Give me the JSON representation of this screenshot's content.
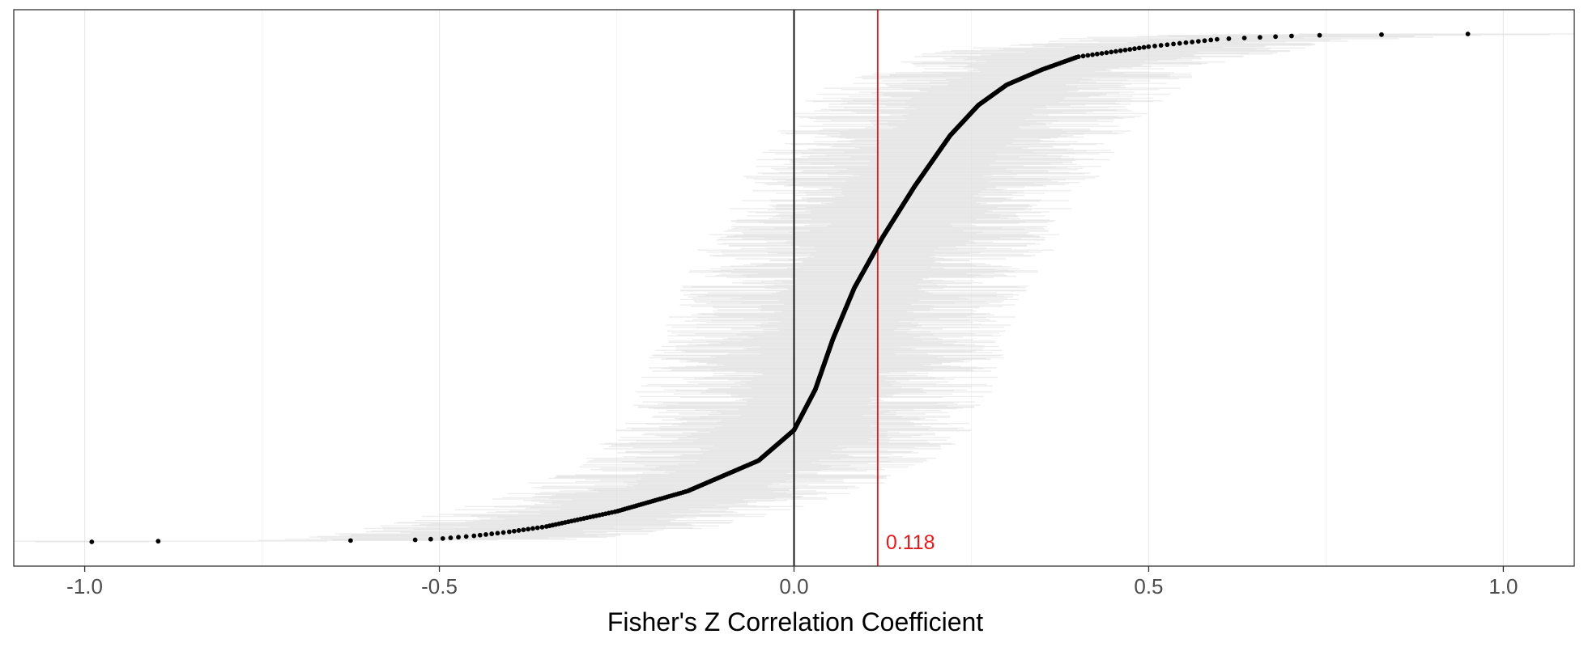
{
  "chart_data": {
    "type": "scatter",
    "subtype": "caterpillar-forest-plot",
    "title": "",
    "xlabel": "Fisher's Z Correlation Coefficient",
    "ylabel": "",
    "xlim": [
      -1.1,
      1.1
    ],
    "xticks": [
      -1.0,
      -0.5,
      0.0,
      0.5,
      1.0
    ],
    "xtick_labels": [
      "-1.0",
      "-0.5",
      "0.0",
      "0.5",
      "1.0"
    ],
    "grid": true,
    "legend": "none",
    "n_points_approx": 760,
    "sorted_estimates_quantiles": [
      [
        0.0,
        -0.99
      ],
      [
        0.0013,
        -0.9
      ],
      [
        0.003,
        -0.55
      ],
      [
        0.006,
        -0.5
      ],
      [
        0.012,
        -0.45
      ],
      [
        0.02,
        -0.4
      ],
      [
        0.03,
        -0.35
      ],
      [
        0.045,
        -0.3
      ],
      [
        0.06,
        -0.25
      ],
      [
        0.08,
        -0.2
      ],
      [
        0.1,
        -0.15
      ],
      [
        0.13,
        -0.1
      ],
      [
        0.16,
        -0.05
      ],
      [
        0.22,
        0.0
      ],
      [
        0.3,
        0.03
      ],
      [
        0.4,
        0.055
      ],
      [
        0.5,
        0.085
      ],
      [
        0.6,
        0.125
      ],
      [
        0.7,
        0.17
      ],
      [
        0.8,
        0.22
      ],
      [
        0.86,
        0.26
      ],
      [
        0.9,
        0.3
      ],
      [
        0.93,
        0.35
      ],
      [
        0.955,
        0.4
      ],
      [
        0.975,
        0.5
      ],
      [
        0.99,
        0.6
      ],
      [
        0.996,
        0.7
      ],
      [
        0.998,
        0.76
      ],
      [
        0.9987,
        0.83
      ],
      [
        0.9993,
        0.89
      ],
      [
        1.0,
        0.95
      ]
    ],
    "interval_halfwidth_approx": 0.18,
    "reference_lines": [
      {
        "x": 0.0,
        "color": "#000000",
        "label": ""
      },
      {
        "x": 0.118,
        "color": "#e41a1c",
        "label": "0.118"
      }
    ],
    "point_color": "#000000",
    "interval_color": "#d9d9d9"
  }
}
